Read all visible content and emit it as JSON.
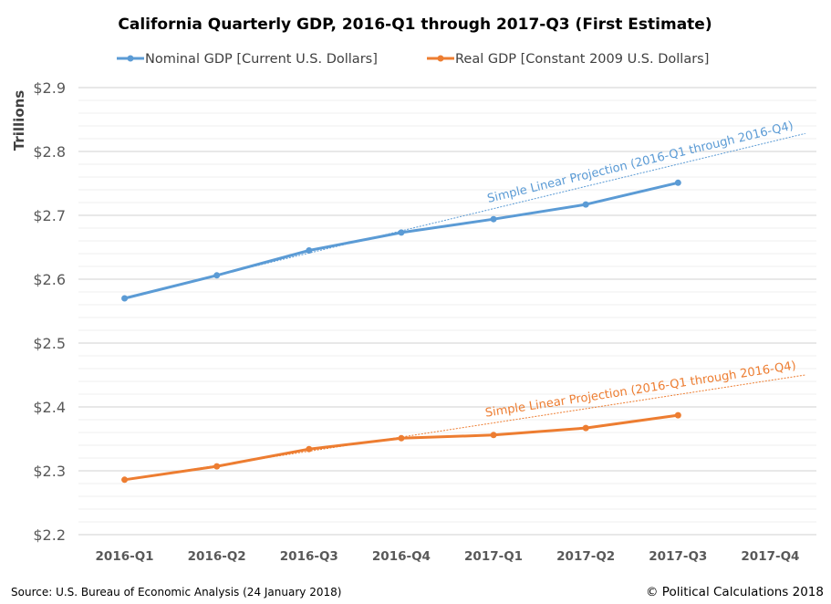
{
  "chart_data": {
    "type": "line",
    "title": "California Quarterly GDP, 2016-Q1 through 2017-Q3 (First Estimate)",
    "ylabel": "Trillions",
    "xlabel": "",
    "categories": [
      "2016-Q1",
      "2016-Q2",
      "2016-Q3",
      "2016-Q4",
      "2017-Q1",
      "2017-Q2",
      "2017-Q3",
      "2017-Q4"
    ],
    "ylim": [
      2.2,
      2.9
    ],
    "yticks": [
      "$2.2",
      "$2.3",
      "$2.4",
      "$2.5",
      "$2.6",
      "$2.7",
      "$2.8",
      "$2.9"
    ],
    "ytick_values": [
      2.2,
      2.3,
      2.4,
      2.5,
      2.6,
      2.7,
      2.8,
      2.9
    ],
    "minor_grid_step": 0.02,
    "grid": true,
    "legend_position": "top",
    "series": [
      {
        "name": "Nominal GDP [Current U.S. Dollars]",
        "color": "#5B9BD5",
        "values": [
          2.57,
          2.606,
          2.645,
          2.673,
          2.694,
          2.717,
          2.751,
          null
        ]
      },
      {
        "name": "Real GDP [Constant 2009 U.S. Dollars]",
        "color": "#ED7D31",
        "values": [
          2.286,
          2.307,
          2.334,
          2.351,
          2.356,
          2.367,
          2.387,
          null
        ]
      }
    ],
    "projections": [
      {
        "label": "Simple Linear Projection (2016-Q1 through 2016-Q4)",
        "series": 0,
        "from": "2016-Q1",
        "through": "2016-Q4",
        "color": "#5B9BD5"
      },
      {
        "label": "Simple Linear Projection (2016-Q1 through 2016-Q4)",
        "series": 1,
        "from": "2016-Q1",
        "through": "2016-Q4",
        "color": "#ED7D31"
      }
    ]
  },
  "footer": {
    "source": "Source: U.S. Bureau of Economic Analysis (24 January 2018)",
    "copyright": "© Political Calculations 2018"
  }
}
